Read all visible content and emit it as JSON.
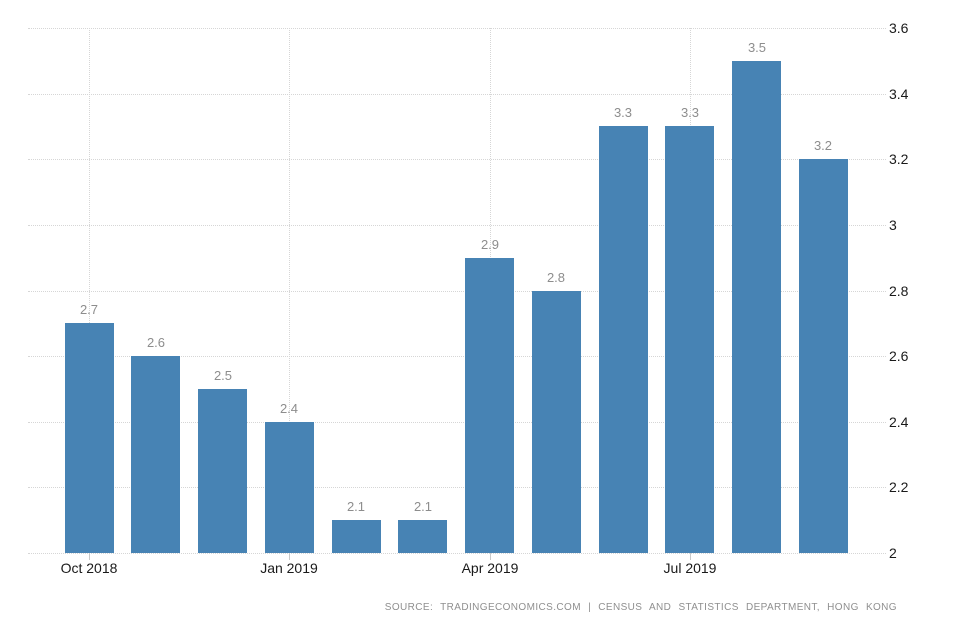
{
  "chart_data": {
    "type": "bar",
    "title": "",
    "values": [
      2.7,
      2.6,
      2.5,
      2.4,
      2.1,
      2.1,
      2.9,
      2.8,
      3.3,
      3.3,
      3.5,
      3.2
    ],
    "value_labels": [
      "2.7",
      "2.6",
      "2.5",
      "2.4",
      "2.1",
      "2.1",
      "2.9",
      "2.8",
      "3.3",
      "3.3",
      "3.5",
      "3.2"
    ],
    "x_ticks": [
      {
        "index": 0,
        "label": "Oct 2018"
      },
      {
        "index": 3,
        "label": "Jan 2019"
      },
      {
        "index": 6,
        "label": "Apr 2019"
      },
      {
        "index": 9,
        "label": "Jul 2019"
      }
    ],
    "y_ticks": [
      2,
      2.2,
      2.4,
      2.6,
      2.8,
      3,
      3.2,
      3.4,
      3.6
    ],
    "y_tick_labels": [
      "2",
      "2.2",
      "2.4",
      "2.6",
      "2.8",
      "3",
      "3.2",
      "3.4",
      "3.6"
    ],
    "ylim": [
      2,
      3.6
    ],
    "y_axis_side": "right",
    "grid": "dotted",
    "legend": "none",
    "xlabel": "",
    "ylabel": "",
    "bar_color": "#4783b4",
    "value_label_color": "#8d8d8d",
    "axis_label_color": "#1a1a1a",
    "gridline_color": "#d6d6d6"
  },
  "footer": {
    "source_text": "SOURCE: TRADINGECONOMICS.COM | CENSUS AND STATISTICS DEPARTMENT, HONG KONG"
  }
}
